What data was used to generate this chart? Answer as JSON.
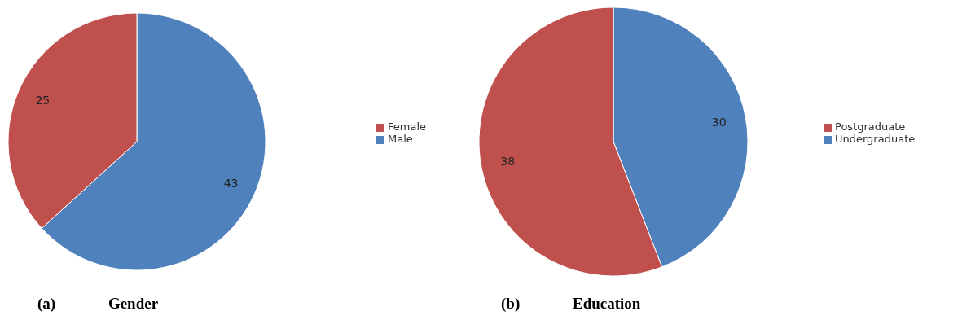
{
  "chart_data": [
    {
      "type": "pie",
      "title": "(a) Gender",
      "categories": [
        "Male",
        "Female"
      ],
      "values": [
        43,
        25
      ],
      "colors": [
        "#4f81bd",
        "#c0504d"
      ],
      "data_labels": true,
      "legend": "right"
    },
    {
      "type": "pie",
      "title": "(b) Education",
      "categories": [
        "Undergraduate",
        "Postgraduate"
      ],
      "values": [
        30,
        38
      ],
      "colors": [
        "#4f81bd",
        "#c0504d"
      ],
      "data_labels": true,
      "legend": "right"
    }
  ]
}
